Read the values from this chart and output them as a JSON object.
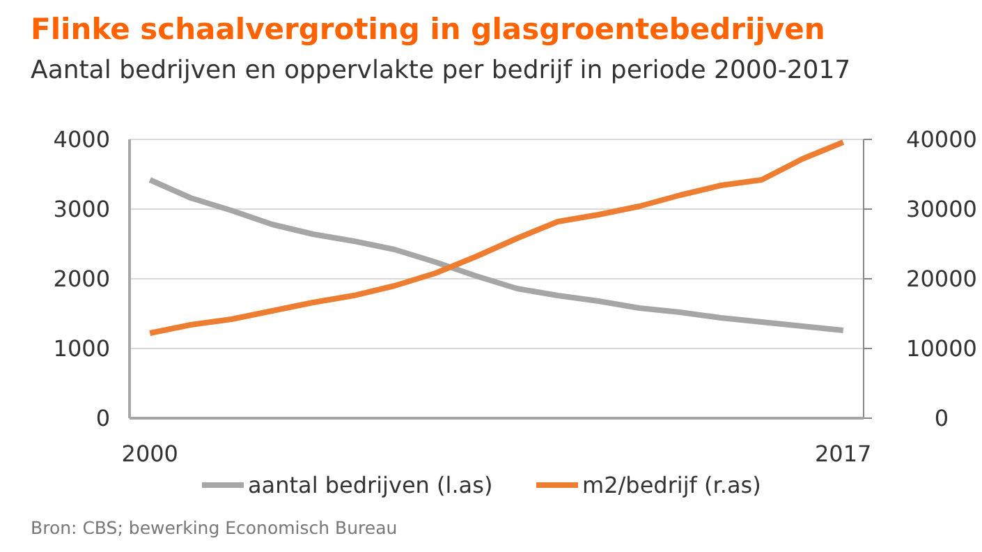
{
  "chart_data": {
    "type": "line",
    "title": "Flinke schaalvergroting in glasgroentebedrijven",
    "subtitle": "Aantal bedrijven en oppervlakte per bedrijf in periode 2000-2017",
    "x": [
      2000,
      2001,
      2002,
      2003,
      2004,
      2005,
      2006,
      2007,
      2008,
      2009,
      2010,
      2011,
      2012,
      2013,
      2014,
      2015,
      2016,
      2017
    ],
    "xlim": [
      1999.5,
      2017.5
    ],
    "xticks": [
      2000,
      2017
    ],
    "ylim": [
      0,
      4000
    ],
    "yticks": [
      0,
      1000,
      2000,
      3000,
      4000
    ],
    "y2lim": [
      0,
      40000
    ],
    "y2ticks": [
      0,
      10000,
      20000,
      30000,
      40000
    ],
    "series": [
      {
        "name": "aantal bedrijven (l.as)",
        "color": "#a6a6a6",
        "values": [
          3420,
          3160,
          2980,
          2780,
          2640,
          2540,
          2420,
          2240,
          2040,
          1860,
          1760,
          1680,
          1580,
          1520,
          1440,
          1380,
          1320,
          1260
        ]
      },
      {
        "name": "m2/bedrijf (r.as)",
        "color": "#ed7d31",
        "axis": "y2",
        "values": [
          12200,
          13400,
          14200,
          15400,
          16600,
          17600,
          19000,
          20800,
          23200,
          25800,
          28200,
          29200,
          30400,
          32000,
          33400,
          34200,
          37200,
          39600
        ]
      }
    ],
    "grid": "y",
    "legend": "bottom",
    "marker": "none",
    "line_style": "solid",
    "annotations": [
      "Bron: CBS; bewerking Economisch Bureau"
    ]
  }
}
